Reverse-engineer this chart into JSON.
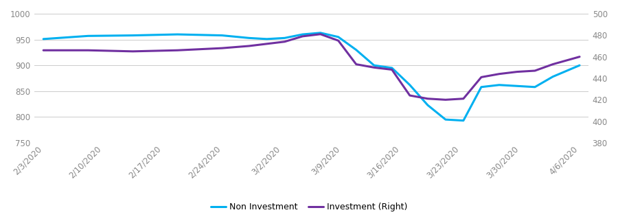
{
  "x_labels": [
    "2/3/2020",
    "2/10/2020",
    "2/17/2020",
    "2/24/2020",
    "3/2/2020",
    "3/9/2020",
    "3/16/2020",
    "3/23/2020",
    "3/30/2020",
    "4/6/2020"
  ],
  "non_investment_color": "#00B0F0",
  "investment_color": "#7030A0",
  "ylim_left": [
    750,
    1000
  ],
  "ylim_right": [
    380,
    500
  ],
  "yticks_left": [
    750,
    800,
    850,
    900,
    950,
    1000
  ],
  "yticks_right": [
    380,
    400,
    420,
    440,
    460,
    480,
    500
  ],
  "background_color": "#ffffff",
  "grid_color": "#cccccc",
  "legend_labels": [
    "Non Investment",
    "Investment (Right)"
  ],
  "line_width": 2.2,
  "ni_x": [
    0,
    1,
    2,
    3,
    4,
    4.6,
    5.0,
    5.4,
    5.8,
    6.2,
    6.6,
    7.0,
    7.4,
    7.8,
    8.2,
    8.6,
    9.0,
    9.4,
    9.8,
    10.2,
    10.6,
    11.0,
    11.4,
    12.0
  ],
  "ni_y": [
    951,
    957,
    958,
    960,
    958,
    953,
    951,
    953,
    960,
    963,
    955,
    930,
    900,
    895,
    862,
    823,
    795,
    793,
    858,
    862,
    860,
    858,
    878,
    900
  ],
  "inv_x": [
    0,
    1,
    2,
    3,
    4,
    4.6,
    5.0,
    5.4,
    5.8,
    6.2,
    6.6,
    7.0,
    7.4,
    7.8,
    8.2,
    8.6,
    9.0,
    9.4,
    9.8,
    10.2,
    10.6,
    11.0,
    11.4,
    12.0
  ],
  "inv_y": [
    466,
    466,
    465,
    466,
    468,
    470,
    472,
    474,
    479,
    481,
    475,
    453,
    450,
    448,
    424,
    421,
    420,
    421,
    441,
    444,
    446,
    447,
    453,
    460
  ]
}
